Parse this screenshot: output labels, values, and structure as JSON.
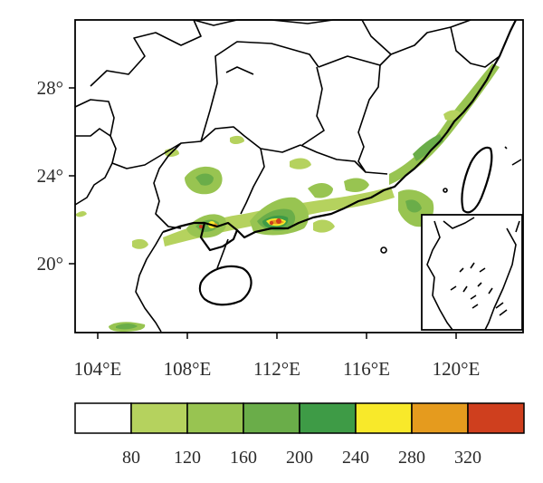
{
  "map": {
    "x_ticks": [
      "104°E",
      "108°E",
      "112°E",
      "116°E",
      "120°E"
    ],
    "y_ticks": [
      "28°",
      "24°",
      "20°"
    ],
    "lon_range": [
      103,
      123
    ],
    "lat_range": [
      17,
      31
    ],
    "colorbar": {
      "labels": [
        "80",
        "120",
        "160",
        "200",
        "240",
        "280",
        "320"
      ],
      "colors": [
        "#ffffff",
        "#b5d25e",
        "#98c451",
        "#6aad49",
        "#3e9b46",
        "#f8e92a",
        "#e59b1e",
        "#cf3f1e"
      ]
    }
  }
}
